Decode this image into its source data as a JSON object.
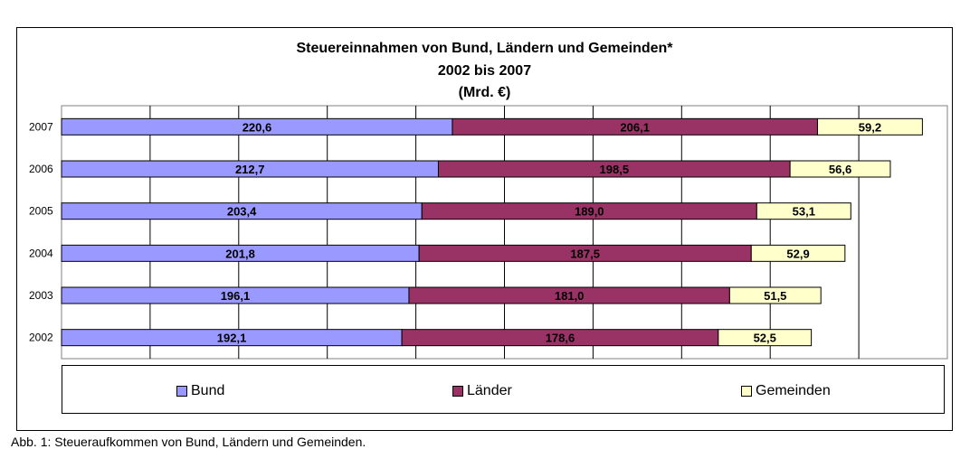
{
  "chart_data": {
    "type": "bar",
    "orientation": "horizontal",
    "stacked": true,
    "title": "Steuereinnahmen von Bund, Ländern und Gemeinden*",
    "subtitle": "2002 bis 2007",
    "unit": "(Mrd. €)",
    "categories": [
      "2007",
      "2006",
      "2005",
      "2004",
      "2003",
      "2002"
    ],
    "series": [
      {
        "name": "Bund",
        "color": "#9999ff",
        "values": [
          220.6,
          212.7,
          203.4,
          201.8,
          196.1,
          192.1
        ],
        "labels": [
          "220,6",
          "212,7",
          "203,4",
          "201,8",
          "196,1",
          "192,1"
        ]
      },
      {
        "name": "Länder",
        "color": "#993366",
        "values": [
          206.1,
          198.5,
          189.0,
          187.5,
          181.0,
          178.6
        ],
        "labels": [
          "206,1",
          "198,5",
          "189,0",
          "187,5",
          "181,0",
          "178,6"
        ]
      },
      {
        "name": "Gemeinden",
        "color": "#ffffcc",
        "values": [
          59.2,
          56.6,
          53.1,
          52.9,
          51.5,
          52.5
        ],
        "labels": [
          "59,2",
          "56,6",
          "53,1",
          "52,9",
          "51,5",
          "52,5"
        ]
      }
    ],
    "xlim": [
      0,
      500
    ],
    "grid": true,
    "legend_position": "bottom"
  },
  "caption": "Abb. 1:   Steueraufkommen von Bund, Ländern und Gemeinden."
}
